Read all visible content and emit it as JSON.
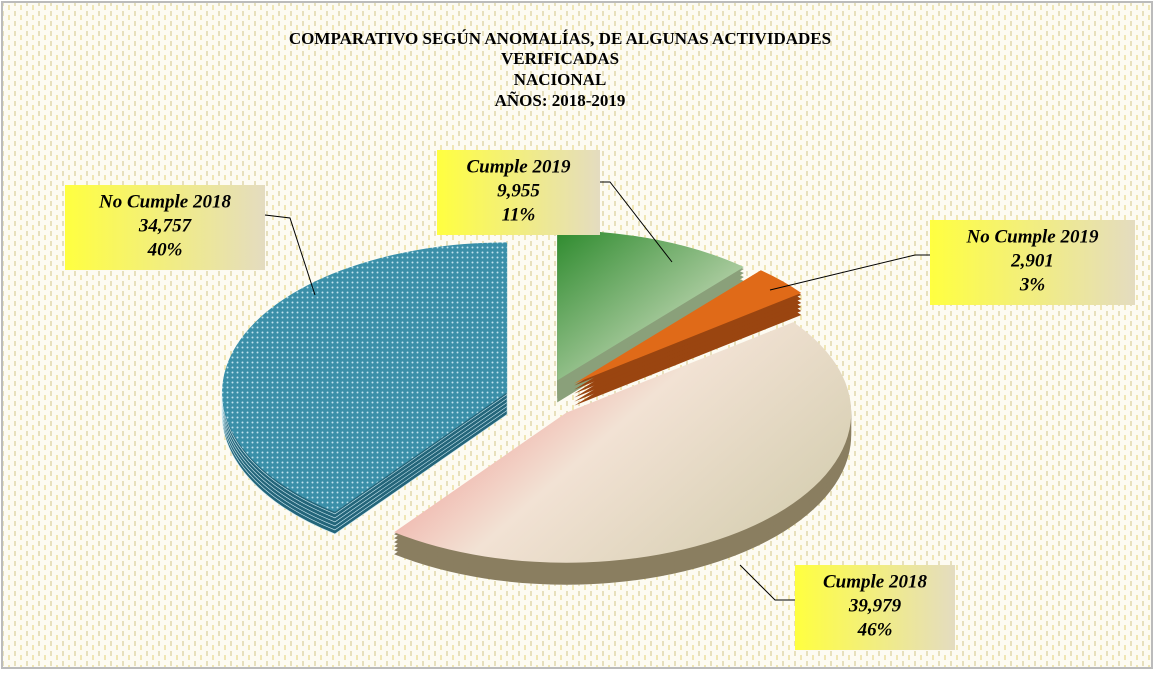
{
  "chart_data": {
    "type": "pie",
    "title": [
      "COMPARATIVO SEGÚN ANOMALÍAS, DE ALGUNAS ACTIVIDADES",
      "VERIFICADAS",
      "NACIONAL",
      "AÑOS: 2018-2019"
    ],
    "categories": [
      "No Cumple 2018",
      "Cumple 2019",
      "No Cumple 2019",
      "Cumple 2018"
    ],
    "values": [
      34757,
      9955,
      2901,
      39979
    ],
    "value_labels": [
      "34,757",
      "9,955",
      "2,901",
      "39,979"
    ],
    "percentages": [
      40,
      11,
      3,
      46
    ],
    "percent_labels": [
      "40%",
      "11%",
      "3%",
      "46%"
    ],
    "colors": [
      "#3a8fa8",
      "#3e9a3e",
      "#e06a18",
      "#ef7b78"
    ]
  }
}
